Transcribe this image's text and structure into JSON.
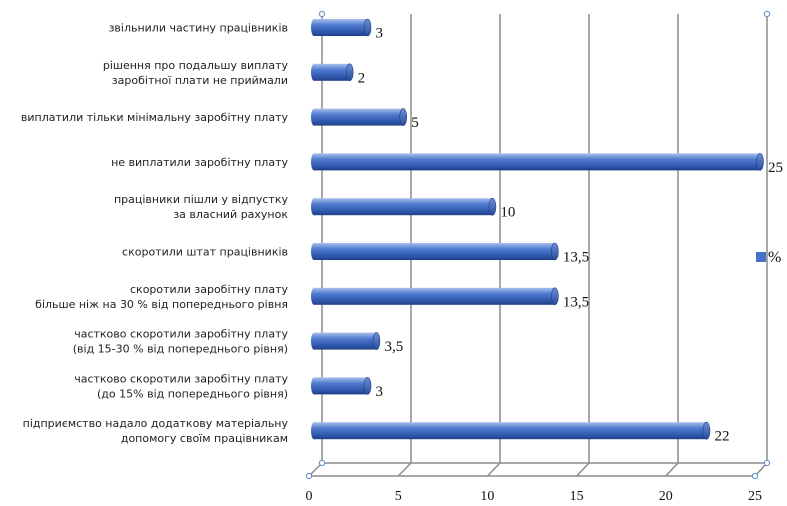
{
  "chart_data": {
    "type": "bar",
    "orientation": "horizontal",
    "categories": [
      "звільнили частину працівників",
      "рішення про подальшу виплату\nзаробітної плати не приймали",
      "виплатили тільки мінімальну заробітну плату",
      "не виплатили заробітну плату",
      "працівники пішли у відпустку\nза власний рахунок",
      "скоротили штат працівників",
      "скоротили заробітну плату\nбільше ніж на 30 % від попереднього рівня",
      "частково скоротили заробітну плату\n(від 15-30 % від попереднього рівня)",
      "частково скоротили заробітну плату\n(до 15% від попереднього рівня)",
      "підприємство надало додаткову матеріальну\nдопомогу своїм працівникам"
    ],
    "series": [
      {
        "name": "%",
        "values": [
          3,
          2,
          5,
          25,
          10,
          13.5,
          13.5,
          3.5,
          3,
          22
        ],
        "value_labels": [
          "3",
          "2",
          "5",
          "25",
          "10",
          "13,5",
          "13,5",
          "3,5",
          "3",
          "22"
        ],
        "color": "#4472c4"
      }
    ],
    "xlim": [
      0,
      25
    ],
    "xticks": [
      0,
      5,
      10,
      15,
      20,
      25
    ],
    "title": "",
    "xlabel": "",
    "ylabel": "",
    "grid": true,
    "legend_position": "right"
  }
}
